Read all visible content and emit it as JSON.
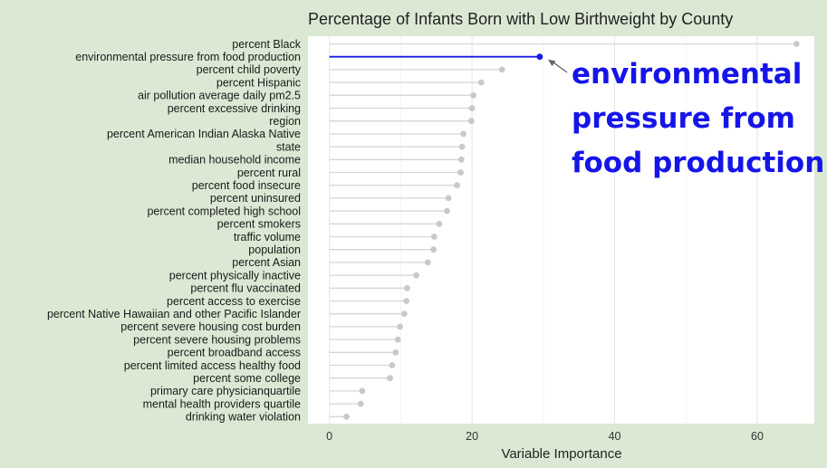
{
  "chart_data": {
    "type": "lollipop",
    "title": "Percentage of Infants Born with Low Birthweight by County",
    "xlabel": "Variable Importance",
    "ylabel": "",
    "xlim": [
      -3,
      68
    ],
    "x_ticks": [
      0,
      20,
      40,
      60
    ],
    "grid": true,
    "highlight_color": "#1a1ae6",
    "point_color": "#c9c9c9",
    "highlight": "environmental pressure from food production",
    "annotation": [
      "environmental",
      "pressure from",
      "food production"
    ],
    "categories": [
      "percent Black",
      "environmental pressure from food production",
      "percent child poverty",
      "percent Hispanic",
      "air pollution average daily pm2.5",
      "percent excessive drinking",
      "region",
      "percent American Indian Alaska Native",
      "state",
      "median household income",
      "percent rural",
      "percent food insecure",
      "percent uninsured",
      "percent completed high school",
      "percent smokers",
      "traffic volume",
      "population",
      "percent Asian",
      "percent physically inactive",
      "percent flu vaccinated",
      "percent access to exercise",
      "percent Native Hawaiian and other Pacific Islander",
      "percent severe housing cost burden",
      "percent severe housing problems",
      "percent broadband access",
      "percent limited access healthy food",
      "percent some college",
      "primary care physicianquartile",
      "mental health providers quartile",
      "drinking water violation"
    ],
    "values": [
      65.5,
      29.5,
      24.2,
      21.3,
      20.2,
      20.0,
      19.9,
      18.8,
      18.6,
      18.5,
      18.4,
      17.9,
      16.7,
      16.5,
      15.4,
      14.7,
      14.6,
      13.8,
      12.2,
      10.9,
      10.8,
      10.5,
      9.9,
      9.6,
      9.3,
      8.8,
      8.5,
      4.6,
      4.4,
      2.4
    ]
  }
}
